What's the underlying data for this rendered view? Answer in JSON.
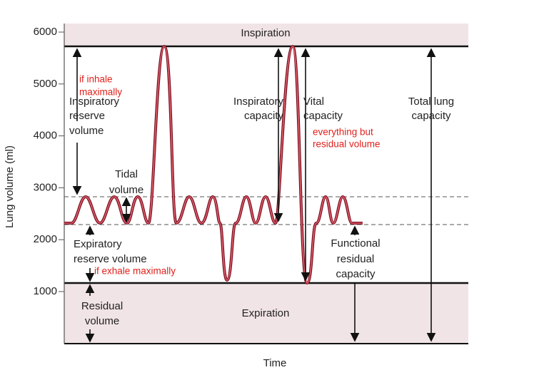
{
  "axis": {
    "label": "Lung volume (ml)",
    "ticks": [
      1000,
      2000,
      3000,
      4000,
      5000,
      6000
    ],
    "x_label": "Time"
  },
  "regions": {
    "top": "Inspiration",
    "bottom": "Expiration"
  },
  "labels": {
    "irv": [
      "Inspiratory",
      "reserve",
      "volume"
    ],
    "tidal": [
      "Tidal",
      "volume"
    ],
    "ic": [
      "Inspiratory",
      "capacity"
    ],
    "vc": [
      "Vital",
      "capacity"
    ],
    "tlc": [
      "Total lung",
      "capacity"
    ],
    "erv": [
      "Expiratory",
      "reserve volume"
    ],
    "frc": [
      "Functional",
      "residual",
      "capacity"
    ],
    "rv": [
      "Residual",
      "volume"
    ]
  },
  "notes": {
    "inhale": [
      "if inhale",
      "maximally"
    ],
    "vital": [
      "everything but",
      "residual volume"
    ],
    "exhale": "if exhale maximally"
  }
}
